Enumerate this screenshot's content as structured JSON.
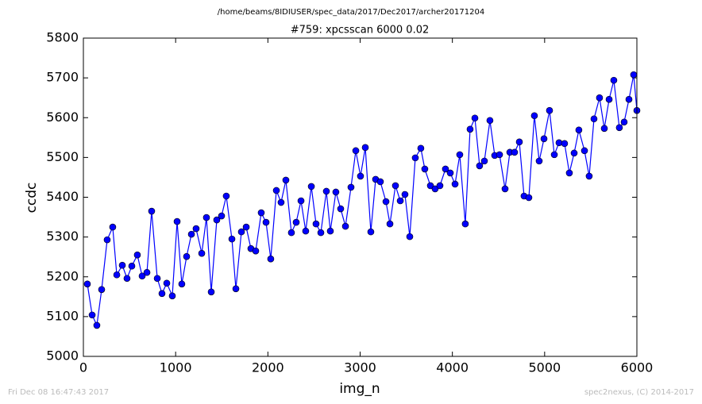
{
  "chart_data": {
    "type": "line",
    "suptitle": "/home/beams/8IDIUSER/spec_data/2017/Dec2017/archer20171204",
    "title": "#759: xpcsscan 6000 0.02",
    "xlabel": "img_n",
    "ylabel": "ccdc",
    "footer_left": "Fri Dec 08 16:47:43 2017",
    "footer_right": "spec2nexus, (C) 2014-2017",
    "xlim": [
      0,
      6000
    ],
    "xticks": [
      0,
      1000,
      2000,
      3000,
      4000,
      5000,
      6000
    ],
    "ylim": [
      5000,
      5800
    ],
    "yticks": [
      5000,
      5100,
      5200,
      5300,
      5400,
      5500,
      5600,
      5700,
      5800
    ],
    "grid": false,
    "x": [
      43,
      95,
      146,
      198,
      258,
      318,
      362,
      422,
      473,
      525,
      585,
      637,
      689,
      740,
      801,
      852,
      904,
      964,
      1016,
      1067,
      1119,
      1171,
      1222,
      1283,
      1334,
      1386,
      1446,
      1498,
      1549,
      1610,
      1653,
      1713,
      1765,
      1816,
      1868,
      1928,
      1980,
      2031,
      2092,
      2143,
      2195,
      2255,
      2307,
      2359,
      2410,
      2471,
      2522,
      2574,
      2634,
      2677,
      2737,
      2789,
      2841,
      2901,
      2953,
      3004,
      3056,
      3116,
      3168,
      3219,
      3280,
      3323,
      3383,
      3435,
      3486,
      3538,
      3598,
      3658,
      3701,
      3762,
      3813,
      3865,
      3925,
      3977,
      4029,
      4080,
      4140,
      4192,
      4244,
      4295,
      4347,
      4407,
      4459,
      4511,
      4571,
      4623,
      4674,
      4726,
      4777,
      4829,
      4889,
      4941,
      4993,
      5053,
      5105,
      5156,
      5216,
      5268,
      5320,
      5371,
      5432,
      5483,
      5535,
      5595,
      5647,
      5699,
      5750,
      5810,
      5862,
      5914,
      5965,
      6000
    ],
    "series": [
      {
        "name": "ccdc",
        "color": "#0000ff",
        "values": [
          5182,
          5104,
          5078,
          5168,
          5293,
          5325,
          5205,
          5229,
          5196,
          5227,
          5255,
          5202,
          5211,
          5365,
          5196,
          5158,
          5184,
          5152,
          5339,
          5182,
          5251,
          5307,
          5321,
          5259,
          5349,
          5162,
          5343,
          5353,
          5403,
          5295,
          5170,
          5313,
          5325,
          5271,
          5265,
          5361,
          5337,
          5245,
          5417,
          5387,
          5443,
          5311,
          5337,
          5391,
          5315,
          5427,
          5333,
          5311,
          5415,
          5315,
          5413,
          5371,
          5327,
          5425,
          5517,
          5453,
          5525,
          5313,
          5445,
          5439,
          5389,
          5333,
          5429,
          5391,
          5407,
          5301,
          5499,
          5523,
          5471,
          5429,
          5421,
          5429,
          5471,
          5461,
          5433,
          5507,
          5333,
          5571,
          5599,
          5479,
          5491,
          5593,
          5505,
          5507,
          5421,
          5513,
          5513,
          5539,
          5403,
          5399,
          5605,
          5491,
          5547,
          5618,
          5507,
          5537,
          5535,
          5461,
          5511,
          5569,
          5517,
          5453,
          5597,
          5650,
          5573,
          5646,
          5694,
          5575,
          5589,
          5646,
          5708,
          5618
        ]
      }
    ]
  }
}
